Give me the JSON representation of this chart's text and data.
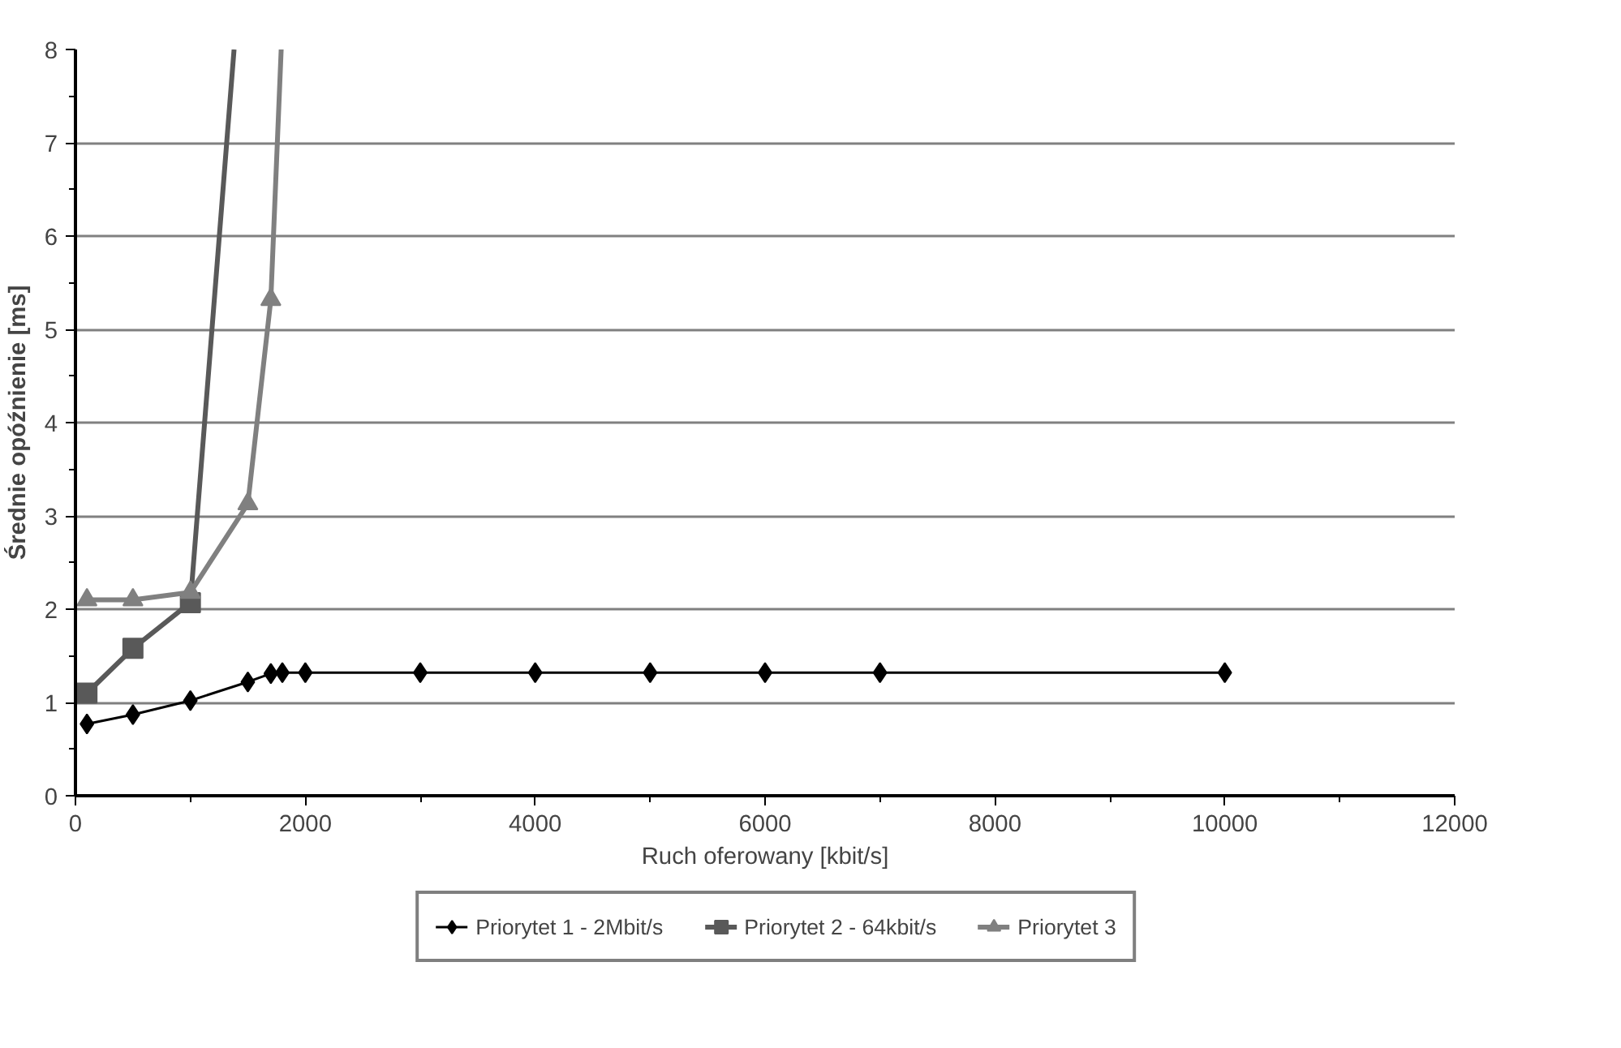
{
  "chart_data": {
    "type": "line",
    "xlabel": "Ruch oferowany [kbit/s]",
    "ylabel": "Średnie opóźnienie [ms]",
    "xlim": [
      0,
      12000
    ],
    "ylim": [
      0,
      8
    ],
    "xticks": [
      0,
      2000,
      4000,
      6000,
      8000,
      10000,
      12000
    ],
    "yticks": [
      0,
      1,
      2,
      3,
      4,
      5,
      6,
      7,
      8
    ],
    "grid": "y",
    "legend": "bottom",
    "series": [
      {
        "name": "Priorytet 1 - 2Mbit/s",
        "color": "#000000",
        "marker": "diamond",
        "x": [
          100,
          500,
          1000,
          1500,
          1700,
          1800,
          2000,
          3000,
          4000,
          5000,
          6000,
          7000,
          10000
        ],
        "values": [
          0.77,
          0.87,
          1.02,
          1.22,
          1.31,
          1.32,
          1.32,
          1.32,
          1.32,
          1.32,
          1.32,
          1.32,
          1.32
        ]
      },
      {
        "name": "Priorytet 2 - 64kbit/s",
        "color": "#595959",
        "marker": "square",
        "x": [
          100,
          500,
          1000,
          1380
        ],
        "values": [
          1.1,
          1.58,
          2.07,
          8
        ]
      },
      {
        "name": "Priorytet 3",
        "color": "#808080",
        "marker": "triangle",
        "x": [
          100,
          500,
          1000,
          1500,
          1700,
          1790
        ],
        "values": [
          2.1,
          2.1,
          2.18,
          3.13,
          5.32,
          8
        ]
      }
    ]
  }
}
